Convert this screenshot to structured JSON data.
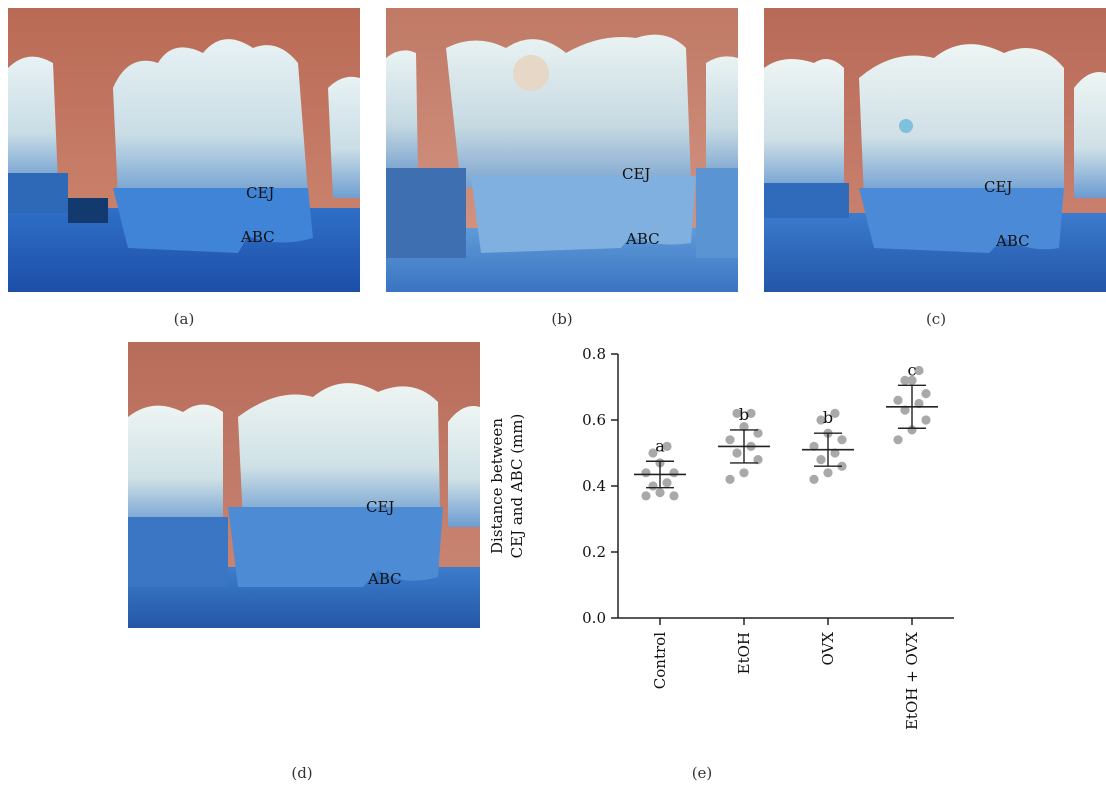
{
  "panels": [
    {
      "caption": "(a)",
      "cej": "CEJ",
      "abc": "ABC"
    },
    {
      "caption": "(b)",
      "cej": "CEJ",
      "abc": "ABC"
    },
    {
      "caption": "(c)",
      "cej": "CEJ",
      "abc": "ABC"
    },
    {
      "caption": "(d)",
      "cej": "CEJ",
      "abc": "ABC"
    }
  ],
  "chart_caption": "(e)",
  "chart_data": {
    "type": "scatter",
    "title": "",
    "ylabel_lines": [
      "Distance between",
      "CEJ and ABC (mm)"
    ],
    "xlabel": "",
    "ylim": [
      0,
      0.8
    ],
    "yticks": [
      "0.0",
      "0.2",
      "0.4",
      "0.6",
      "0.8"
    ],
    "categories": [
      "Control",
      "EtOH",
      "OVX",
      "EtOH + OVX"
    ],
    "significance": [
      "a",
      "b",
      "b",
      "c"
    ],
    "means": [
      0.435,
      0.52,
      0.51,
      0.64
    ],
    "sd_low": [
      0.395,
      0.47,
      0.46,
      0.575
    ],
    "sd_high": [
      0.475,
      0.57,
      0.56,
      0.705
    ],
    "points": [
      [
        0.37,
        0.38,
        0.37,
        0.4,
        0.41,
        0.44,
        0.44,
        0.47,
        0.5,
        0.52
      ],
      [
        0.42,
        0.44,
        0.48,
        0.5,
        0.52,
        0.54,
        0.56,
        0.58,
        0.62,
        0.62
      ],
      [
        0.42,
        0.44,
        0.46,
        0.48,
        0.5,
        0.52,
        0.54,
        0.56,
        0.6,
        0.62
      ],
      [
        0.54,
        0.57,
        0.6,
        0.63,
        0.65,
        0.66,
        0.68,
        0.72,
        0.72,
        0.75
      ]
    ],
    "colors": {
      "points": "#a9a9a9",
      "lines": "#222222"
    }
  }
}
